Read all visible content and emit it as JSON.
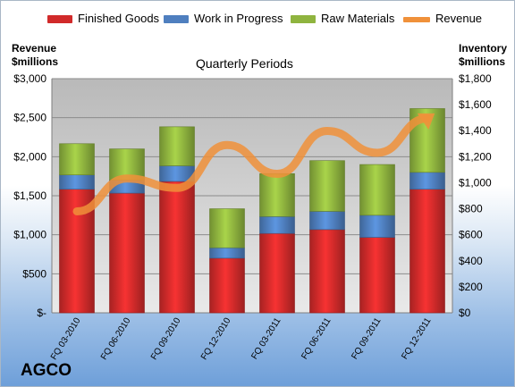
{
  "chart_data": {
    "type": "bar",
    "stacked": true,
    "title": "Quarterly Periods",
    "company": "AGCO",
    "categories": [
      "FQ 03-2010",
      "FQ 06-2010",
      "FQ 09-2010",
      "FQ 12-2010",
      "FQ 03-2011",
      "FQ 06-2011",
      "FQ 09-2011",
      "FQ 12-2011"
    ],
    "series": [
      {
        "name": "Finished Goods",
        "axis": "right",
        "color": "#d12a2a",
        "values": [
          950,
          920,
          1010,
          420,
          610,
          640,
          580,
          950
        ]
      },
      {
        "name": "Work in Progress",
        "axis": "right",
        "color": "#4f7fbf",
        "values": [
          110,
          100,
          120,
          80,
          130,
          140,
          170,
          130
        ]
      },
      {
        "name": "Raw Materials",
        "axis": "right",
        "color": "#8fb43f",
        "values": [
          240,
          240,
          300,
          300,
          330,
          390,
          390,
          490
        ]
      }
    ],
    "line_series": {
      "name": "Revenue",
      "axis": "left",
      "color": "#f0913a",
      "values": [
        1300,
        1720,
        1600,
        2150,
        1780,
        2330,
        2050,
        2490
      ]
    },
    "left_axis": {
      "label_line1": "Revenue",
      "label_line2": "$millions",
      "ylim": [
        0,
        3000
      ],
      "ticks": [
        "$-",
        "$500",
        "$1,000",
        "$1,500",
        "$2,000",
        "$2,500",
        "$3,000"
      ]
    },
    "right_axis": {
      "label_line1": "Inventory",
      "label_line2": "$millions",
      "ylim": [
        0,
        1800
      ],
      "ticks": [
        "$0",
        "$200",
        "$400",
        "$600",
        "$800",
        "$1,000",
        "$1,200",
        "$1,400",
        "$1,600",
        "$1,800"
      ]
    },
    "grid": true,
    "legend_position": "top"
  }
}
